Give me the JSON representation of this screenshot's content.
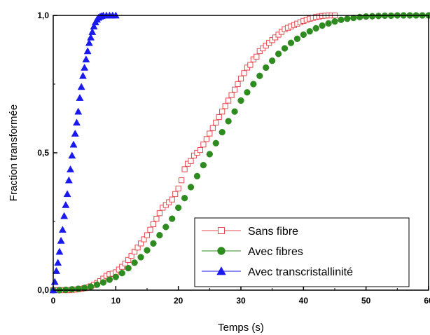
{
  "chart_data": {
    "type": "scatter",
    "title": "",
    "xlabel": "Temps (s)",
    "ylabel": "Fraction transformée",
    "xlim": [
      0,
      60
    ],
    "ylim": [
      0,
      1
    ],
    "x_ticks": [
      0,
      10,
      20,
      30,
      40,
      50,
      60
    ],
    "x_tick_labels": [
      "0",
      "10",
      "20",
      "30",
      "40",
      "50",
      "60"
    ],
    "y_ticks": [
      0,
      0.5,
      1
    ],
    "y_tick_labels": [
      "0,0",
      "0,5",
      "1,0"
    ],
    "grid": false,
    "legend_position": "bottom-right",
    "series": [
      {
        "name": "Sans fibre",
        "marker": "open-square",
        "color": "#e8474c",
        "x": [
          0,
          0.5,
          1,
          1.5,
          2,
          2.5,
          3,
          3.5,
          4,
          4.5,
          5,
          5.5,
          6,
          6.5,
          7,
          7.5,
          8,
          8.5,
          9,
          9.5,
          10,
          10.5,
          11,
          11.5,
          12,
          12.5,
          13,
          13.5,
          14,
          14.5,
          15,
          15.5,
          16,
          16.5,
          17,
          17.5,
          18,
          18.5,
          19,
          19.5,
          20,
          20.5,
          21,
          21.5,
          22,
          22.5,
          23,
          23.5,
          24,
          24.5,
          25,
          25.5,
          26,
          26.5,
          27,
          27.5,
          28,
          28.5,
          29,
          29.5,
          30,
          30.5,
          31,
          31.5,
          32,
          32.5,
          33,
          33.5,
          34,
          34.5,
          35,
          35.5,
          36,
          36.5,
          37,
          37.5,
          38,
          38.5,
          39,
          39.5,
          40,
          40.5,
          41,
          41.5,
          42,
          42.5,
          43,
          43.5,
          44,
          44.5,
          45
        ],
        "y": [
          0,
          0,
          0,
          0,
          0,
          0,
          0.001,
          0.002,
          0.003,
          0.005,
          0.007,
          0.01,
          0.014,
          0.019,
          0.026,
          0.033,
          0.042,
          0.052,
          0.058,
          0.06,
          0.065,
          0.075,
          0.085,
          0.097,
          0.11,
          0.125,
          0.14,
          0.155,
          0.17,
          0.185,
          0.2,
          0.22,
          0.24,
          0.26,
          0.28,
          0.3,
          0.31,
          0.32,
          0.33,
          0.35,
          0.37,
          0.4,
          0.44,
          0.46,
          0.47,
          0.49,
          0.5,
          0.51,
          0.53,
          0.55,
          0.57,
          0.59,
          0.61,
          0.63,
          0.65,
          0.67,
          0.69,
          0.71,
          0.73,
          0.75,
          0.77,
          0.79,
          0.81,
          0.82,
          0.84,
          0.85,
          0.87,
          0.88,
          0.89,
          0.9,
          0.91,
          0.92,
          0.93,
          0.94,
          0.95,
          0.955,
          0.96,
          0.965,
          0.97,
          0.975,
          0.98,
          0.984,
          0.988,
          0.991,
          0.994,
          0.996,
          0.998,
          0.999,
          1,
          1,
          1
        ]
      },
      {
        "name": "Avec fibres",
        "marker": "filled-circle",
        "color": "#2e8b1f",
        "x": [
          0,
          1,
          2,
          3,
          4,
          5,
          6,
          7,
          8,
          9,
          10,
          11,
          12,
          13,
          14,
          15,
          16,
          17,
          18,
          19,
          20,
          21,
          22,
          23,
          24,
          25,
          26,
          27,
          28,
          29,
          30,
          31,
          32,
          33,
          34,
          35,
          36,
          37,
          38,
          39,
          40,
          41,
          42,
          43,
          44,
          45,
          46,
          47,
          48,
          49,
          50,
          51,
          52,
          53,
          54,
          55,
          56,
          57,
          58,
          59,
          60
        ],
        "y": [
          0,
          0,
          0.001,
          0.003,
          0.005,
          0.008,
          0.013,
          0.02,
          0.028,
          0.038,
          0.048,
          0.062,
          0.08,
          0.1,
          0.12,
          0.145,
          0.17,
          0.2,
          0.23,
          0.26,
          0.3,
          0.335,
          0.375,
          0.415,
          0.455,
          0.495,
          0.535,
          0.575,
          0.615,
          0.65,
          0.69,
          0.72,
          0.75,
          0.78,
          0.81,
          0.835,
          0.86,
          0.88,
          0.9,
          0.915,
          0.93,
          0.942,
          0.953,
          0.963,
          0.971,
          0.978,
          0.984,
          0.988,
          0.991,
          0.994,
          0.996,
          0.997,
          0.998,
          0.999,
          0.999,
          1,
          1,
          1,
          1,
          1,
          1
        ]
      },
      {
        "name": "Avec transcristallinité",
        "marker": "filled-triangle",
        "color": "#1a1aee",
        "x": [
          0,
          0.25,
          0.5,
          0.75,
          1,
          1.25,
          1.5,
          1.75,
          2,
          2.25,
          2.5,
          2.75,
          3,
          3.25,
          3.5,
          3.75,
          4,
          4.25,
          4.5,
          4.75,
          5,
          5.25,
          5.5,
          5.75,
          6,
          6.25,
          6.5,
          6.75,
          7,
          7.25,
          7.5,
          7.75,
          8,
          8.5,
          9,
          9.5,
          10
        ],
        "y": [
          0,
          0.03,
          0.07,
          0.1,
          0.14,
          0.18,
          0.22,
          0.27,
          0.31,
          0.35,
          0.4,
          0.44,
          0.49,
          0.53,
          0.57,
          0.61,
          0.65,
          0.7,
          0.74,
          0.78,
          0.81,
          0.84,
          0.87,
          0.9,
          0.92,
          0.94,
          0.96,
          0.975,
          0.985,
          0.992,
          0.996,
          0.998,
          1,
          1,
          1,
          1,
          1
        ]
      }
    ]
  }
}
